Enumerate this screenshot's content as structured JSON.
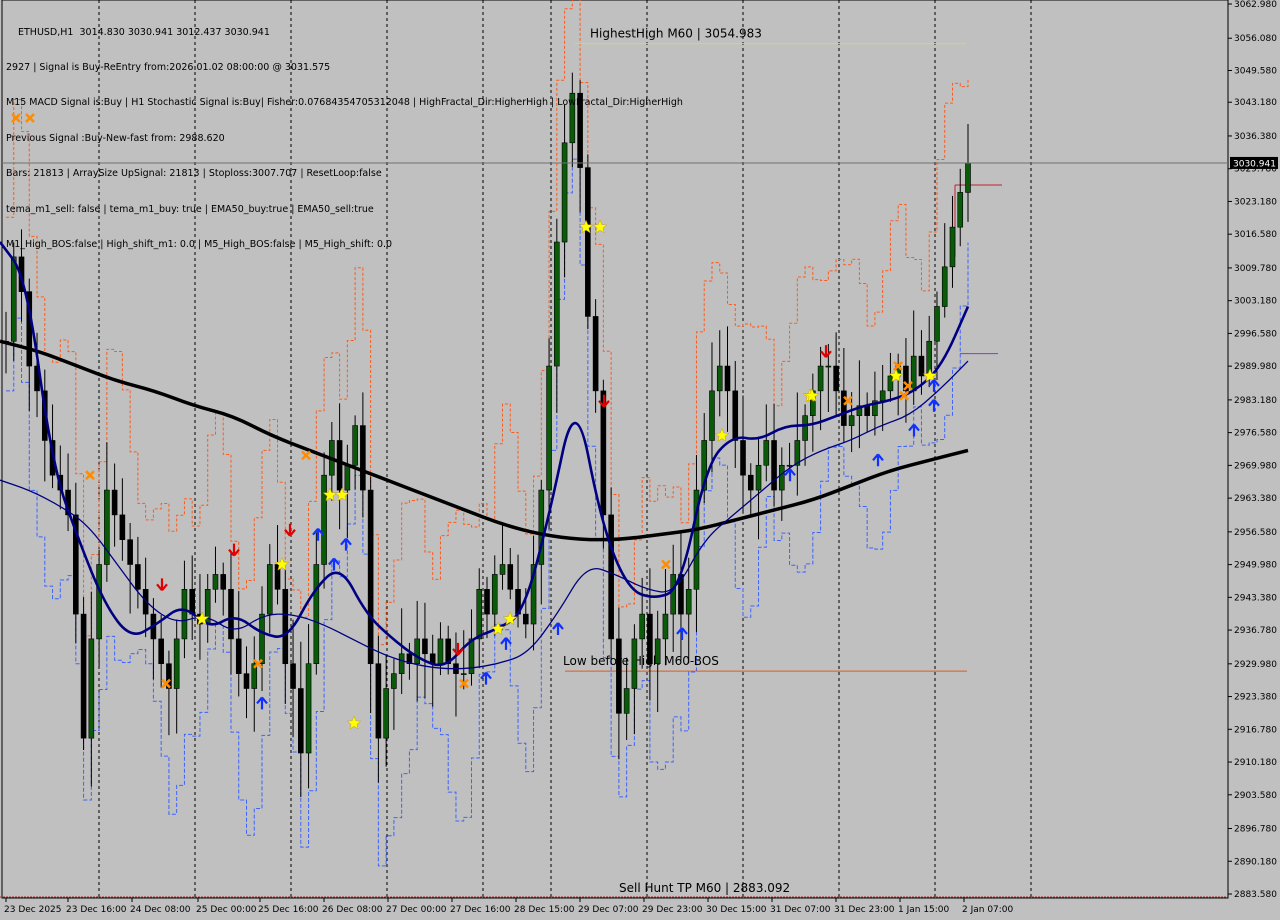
{
  "header": {
    "symbol_line": "ETHUSD,H1  3014.830 3030.941 3012.437 3030.941",
    "info_lines": [
      "2927 | Signal is Buy-ReEntry from:2026.01.02 08:00:00 @ 3031.575",
      "M15 MACD Signal is:Buy | H1 Stochastic Signal is:Buy| Fisher:0.07684354705312048 | HighFractal_Dir:HigherHigh | LowFractal_Dir:HigherHigh",
      "Previous Signal :Buy-New-fast from: 2988.620",
      "Bars: 21813 | ArraySize UpSignal: 21813 | Stoploss:3007.707 | ResetLoop:false",
      "tema_m1_sell: false | tema_m1_buy: true | EMA50_buy:true | EMA50_sell:true",
      "M1_High_BOS:false | High_shift_m1: 0.0 | M5_High_BOS:false | M5_High_shift: 0.0"
    ]
  },
  "chart_data": {
    "type": "candlestick",
    "symbol": "ETHUSD",
    "timeframe": "H1",
    "current_price": 3030.941,
    "current_price_label": "3030.941",
    "ylim": [
      2883.58,
      3062.98
    ],
    "y_ticks": [
      "3062.980",
      "3056.080",
      "3049.580",
      "3043.180",
      "3036.380",
      "3029.780",
      "3023.180",
      "3016.580",
      "3009.780",
      "3003.180",
      "2996.580",
      "2989.980",
      "2983.180",
      "2976.580",
      "2969.980",
      "2963.380",
      "2956.580",
      "2949.980",
      "2943.380",
      "2936.780",
      "2929.980",
      "2923.380",
      "2916.780",
      "2910.180",
      "2903.580",
      "2896.780",
      "2890.180",
      "2883.580"
    ],
    "x_ticks": [
      "23 Dec 2025",
      "23 Dec 16:00",
      "24 Dec 08:00",
      "25 Dec 00:00",
      "25 Dec 16:00",
      "26 Dec 08:00",
      "27 Dec 00:00",
      "27 Dec 16:00",
      "28 Dec 15:00",
      "29 Dec 07:00",
      "29 Dec 23:00",
      "30 Dec 15:00",
      "31 Dec 07:00",
      "31 Dec 23:00",
      "1 Jan 15:00",
      "2 Jan 07:00"
    ],
    "annotations": {
      "highest_high": {
        "text": "HighestHigh    M60 | 3054.983",
        "price": 3054.983
      },
      "low_before_high": {
        "text": "Low before High   M60-BOS",
        "price": 2928.5
      },
      "sell_hunt_tp": {
        "text": "Sell Hunt TP M60 | 2883.092",
        "price": 2883.092
      }
    },
    "close_path": [
      2995,
      3012,
      3005,
      2990,
      2985,
      2975,
      2968,
      2965,
      2960,
      2940,
      2915,
      2935,
      2950,
      2965,
      2960,
      2955,
      2950,
      2945,
      2940,
      2935,
      2930,
      2925,
      2935,
      2945,
      2940,
      2938,
      2945,
      2948,
      2945,
      2935,
      2928,
      2925,
      2930,
      2940,
      2950,
      2945,
      2930,
      2925,
      2912,
      2930,
      2950,
      2968,
      2975,
      2965,
      2970,
      2978,
      2965,
      2930,
      2915,
      2925,
      2928,
      2932,
      2930,
      2935,
      2932,
      2930,
      2935,
      2930,
      2928,
      2928,
      2935,
      2945,
      2940,
      2948,
      2950,
      2945,
      2940,
      2938,
      2950,
      2965,
      2990,
      3015,
      3035,
      3045,
      3030,
      3000,
      2985,
      2960,
      2935,
      2920,
      2925,
      2935,
      2940,
      2930,
      2935,
      2940,
      2948,
      2940,
      2945,
      2965,
      2975,
      2985,
      2990,
      2985,
      2975,
      2968,
      2965,
      2970,
      2975,
      2965,
      2970,
      2970,
      2975,
      2980,
      2985,
      2990,
      2990,
      2985,
      2978,
      2980,
      2982,
      2980,
      2983,
      2985,
      2988,
      2990,
      2985,
      2992,
      2988,
      2995,
      3002,
      3010,
      3018,
      3025,
      3030.941
    ],
    "series": [
      {
        "name": "",
        "color": "#000000",
        "style": "thick",
        "values": [
          2995,
          2993,
          2990,
          2987,
          2985,
          2982,
          2980,
          2976,
          2973,
          2970,
          2967,
          2964,
          2961,
          2958,
          2956,
          2955,
          2955,
          2956,
          2957,
          2959,
          2961,
          2963,
          2966,
          2969,
          2971,
          2973
        ]
      },
      {
        "name": "",
        "color": "#000080",
        "style": "medium",
        "values": [
          3015,
          3008,
          2970,
          2955,
          2942,
          2935,
          2938,
          2942,
          2937,
          2940,
          2936,
          2935,
          2945,
          2950,
          2940,
          2935,
          2931,
          2929,
          2935,
          2937,
          2940,
          2960,
          2985,
          2958,
          2945,
          2943,
          2945,
          2970,
          2976,
          2975,
          2978,
          2978,
          2980,
          2982,
          2983,
          2985,
          2990,
          3002
        ]
      },
      {
        "name": "",
        "color": "#000080",
        "style": "thin",
        "values": [
          2967,
          2965,
          2962,
          2958,
          2950,
          2942,
          2938,
          2940,
          2936,
          2940,
          2940,
          2938,
          2935,
          2932,
          2930,
          2929,
          2929,
          2930,
          2932,
          2940,
          2950,
          2948,
          2945,
          2944,
          2955,
          2960,
          2965,
          2970,
          2973,
          2975,
          2978,
          2980,
          2985,
          2991
        ]
      }
    ],
    "markers": {
      "buy_arrows": 18,
      "sell_arrows": 6,
      "yellow_stars": 14,
      "orange_crosses": 12
    }
  }
}
